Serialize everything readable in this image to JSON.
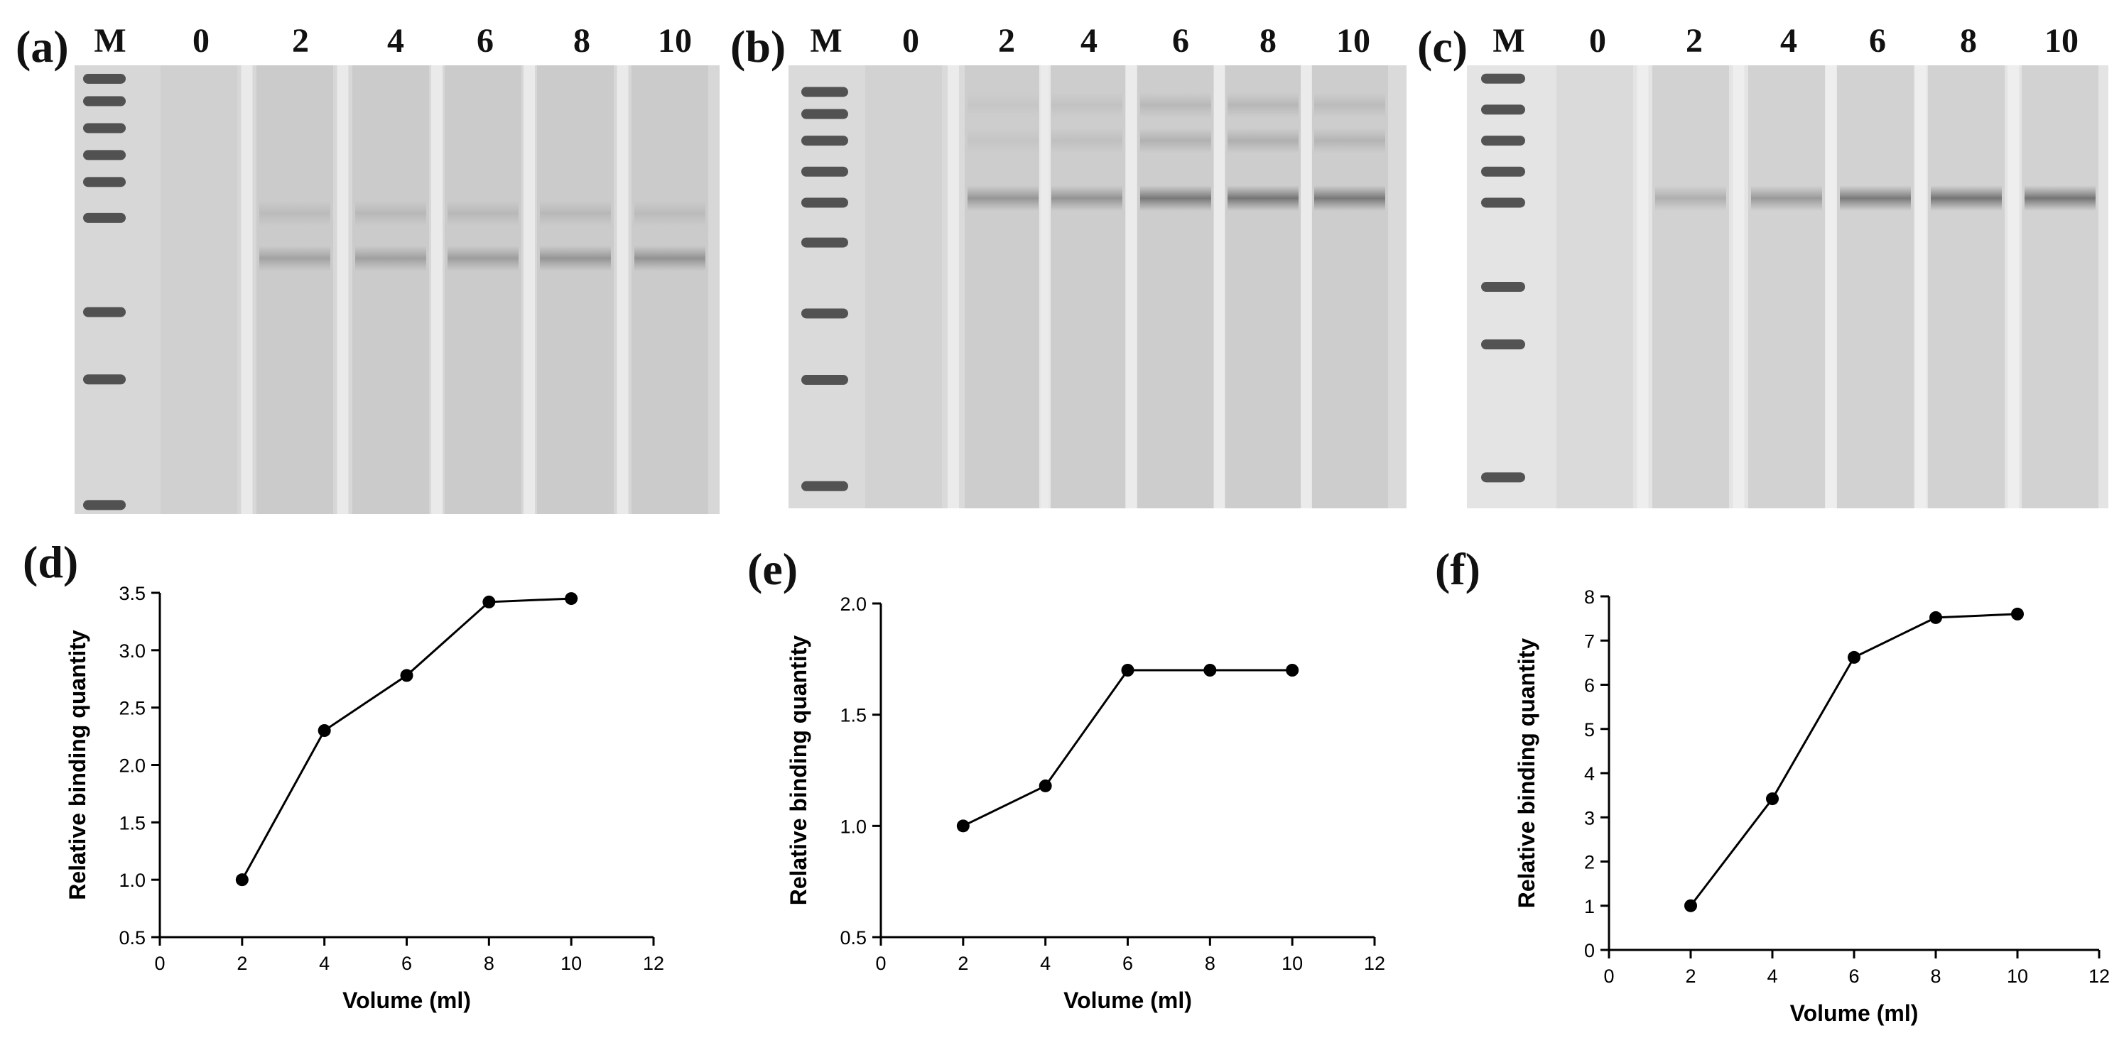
{
  "gels": [
    {
      "letter": "(a)",
      "lanes": [
        "M",
        "0",
        "2",
        "4",
        "6",
        "8",
        "10"
      ],
      "bg": "#d7d7d7",
      "ladder": [
        0.03,
        0.08,
        0.14,
        0.2,
        0.26,
        0.34,
        0.55,
        0.7,
        0.98
      ],
      "bands": [
        {
          "pos": 0.43,
          "strength": [
            0,
            0.3,
            0.32,
            0.34,
            0.4,
            0.42
          ]
        },
        {
          "pos": 0.33,
          "strength": [
            0,
            0.12,
            0.14,
            0.14,
            0.14,
            0.12
          ]
        }
      ]
    },
    {
      "letter": "(b)",
      "lanes": [
        "M",
        "0",
        "2",
        "4",
        "6",
        "8",
        "10"
      ],
      "bg": "#dadada",
      "ladder": [
        0.06,
        0.11,
        0.17,
        0.24,
        0.31,
        0.4,
        0.56,
        0.71,
        0.95
      ],
      "bands": [
        {
          "pos": 0.3,
          "strength": [
            0,
            0.4,
            0.42,
            0.62,
            0.64,
            0.62
          ]
        },
        {
          "pos": 0.17,
          "strength": [
            0,
            0.06,
            0.1,
            0.2,
            0.22,
            0.18
          ]
        },
        {
          "pos": 0.09,
          "strength": [
            0,
            0.05,
            0.08,
            0.15,
            0.16,
            0.13
          ]
        }
      ]
    },
    {
      "letter": "(c)",
      "lanes": [
        "M",
        "0",
        "2",
        "4",
        "6",
        "8",
        "10"
      ],
      "bg": "#e4e4e4",
      "ladder": [
        0.03,
        0.1,
        0.17,
        0.24,
        0.31,
        0.5,
        0.63,
        0.93
      ],
      "bands": [
        {
          "pos": 0.3,
          "strength": [
            0,
            0.25,
            0.4,
            0.62,
            0.66,
            0.66
          ]
        }
      ]
    }
  ],
  "chart_data": [
    {
      "type": "line",
      "panel": "(d)",
      "xlabel": "Volume (ml)",
      "ylabel": "Relative binding quantity",
      "xlim": [
        0,
        12
      ],
      "ylim": [
        0.5,
        3.5
      ],
      "xticks": [
        0,
        2,
        4,
        6,
        8,
        10,
        12
      ],
      "yticks": [
        0.5,
        1.0,
        1.5,
        2.0,
        2.5,
        3.0,
        3.5
      ],
      "ytick_labels": [
        "0.5",
        "1.0",
        "1.5",
        "2.0",
        "2.5",
        "3.0",
        "3.5"
      ],
      "x": [
        2,
        4,
        6,
        8,
        10
      ],
      "y": [
        1.0,
        2.3,
        2.78,
        3.42,
        3.45
      ]
    },
    {
      "type": "line",
      "panel": "(e)",
      "xlabel": "Volume (ml)",
      "ylabel": "Relative binding quantity",
      "xlim": [
        0,
        12
      ],
      "ylim": [
        0.5,
        2.0
      ],
      "xticks": [
        0,
        2,
        4,
        6,
        8,
        10,
        12
      ],
      "yticks": [
        0.5,
        1.0,
        1.5,
        2.0
      ],
      "ytick_labels": [
        "0.5",
        "1.0",
        "1.5",
        "2.0"
      ],
      "x": [
        2,
        4,
        6,
        8,
        10
      ],
      "y": [
        1.0,
        1.18,
        1.7,
        1.7,
        1.7
      ]
    },
    {
      "type": "line",
      "panel": "(f)",
      "xlabel": "Volume (ml)",
      "ylabel": "Relative binding quantity",
      "xlim": [
        0,
        12
      ],
      "ylim": [
        0,
        8
      ],
      "xticks": [
        0,
        2,
        4,
        6,
        8,
        10,
        12
      ],
      "yticks": [
        0,
        1,
        2,
        3,
        4,
        5,
        6,
        7,
        8
      ],
      "ytick_labels": [
        "0",
        "1",
        "2",
        "3",
        "4",
        "5",
        "6",
        "7",
        "8"
      ],
      "x": [
        2,
        4,
        6,
        8,
        10
      ],
      "y": [
        1.0,
        3.42,
        6.62,
        7.52,
        7.6
      ]
    }
  ]
}
